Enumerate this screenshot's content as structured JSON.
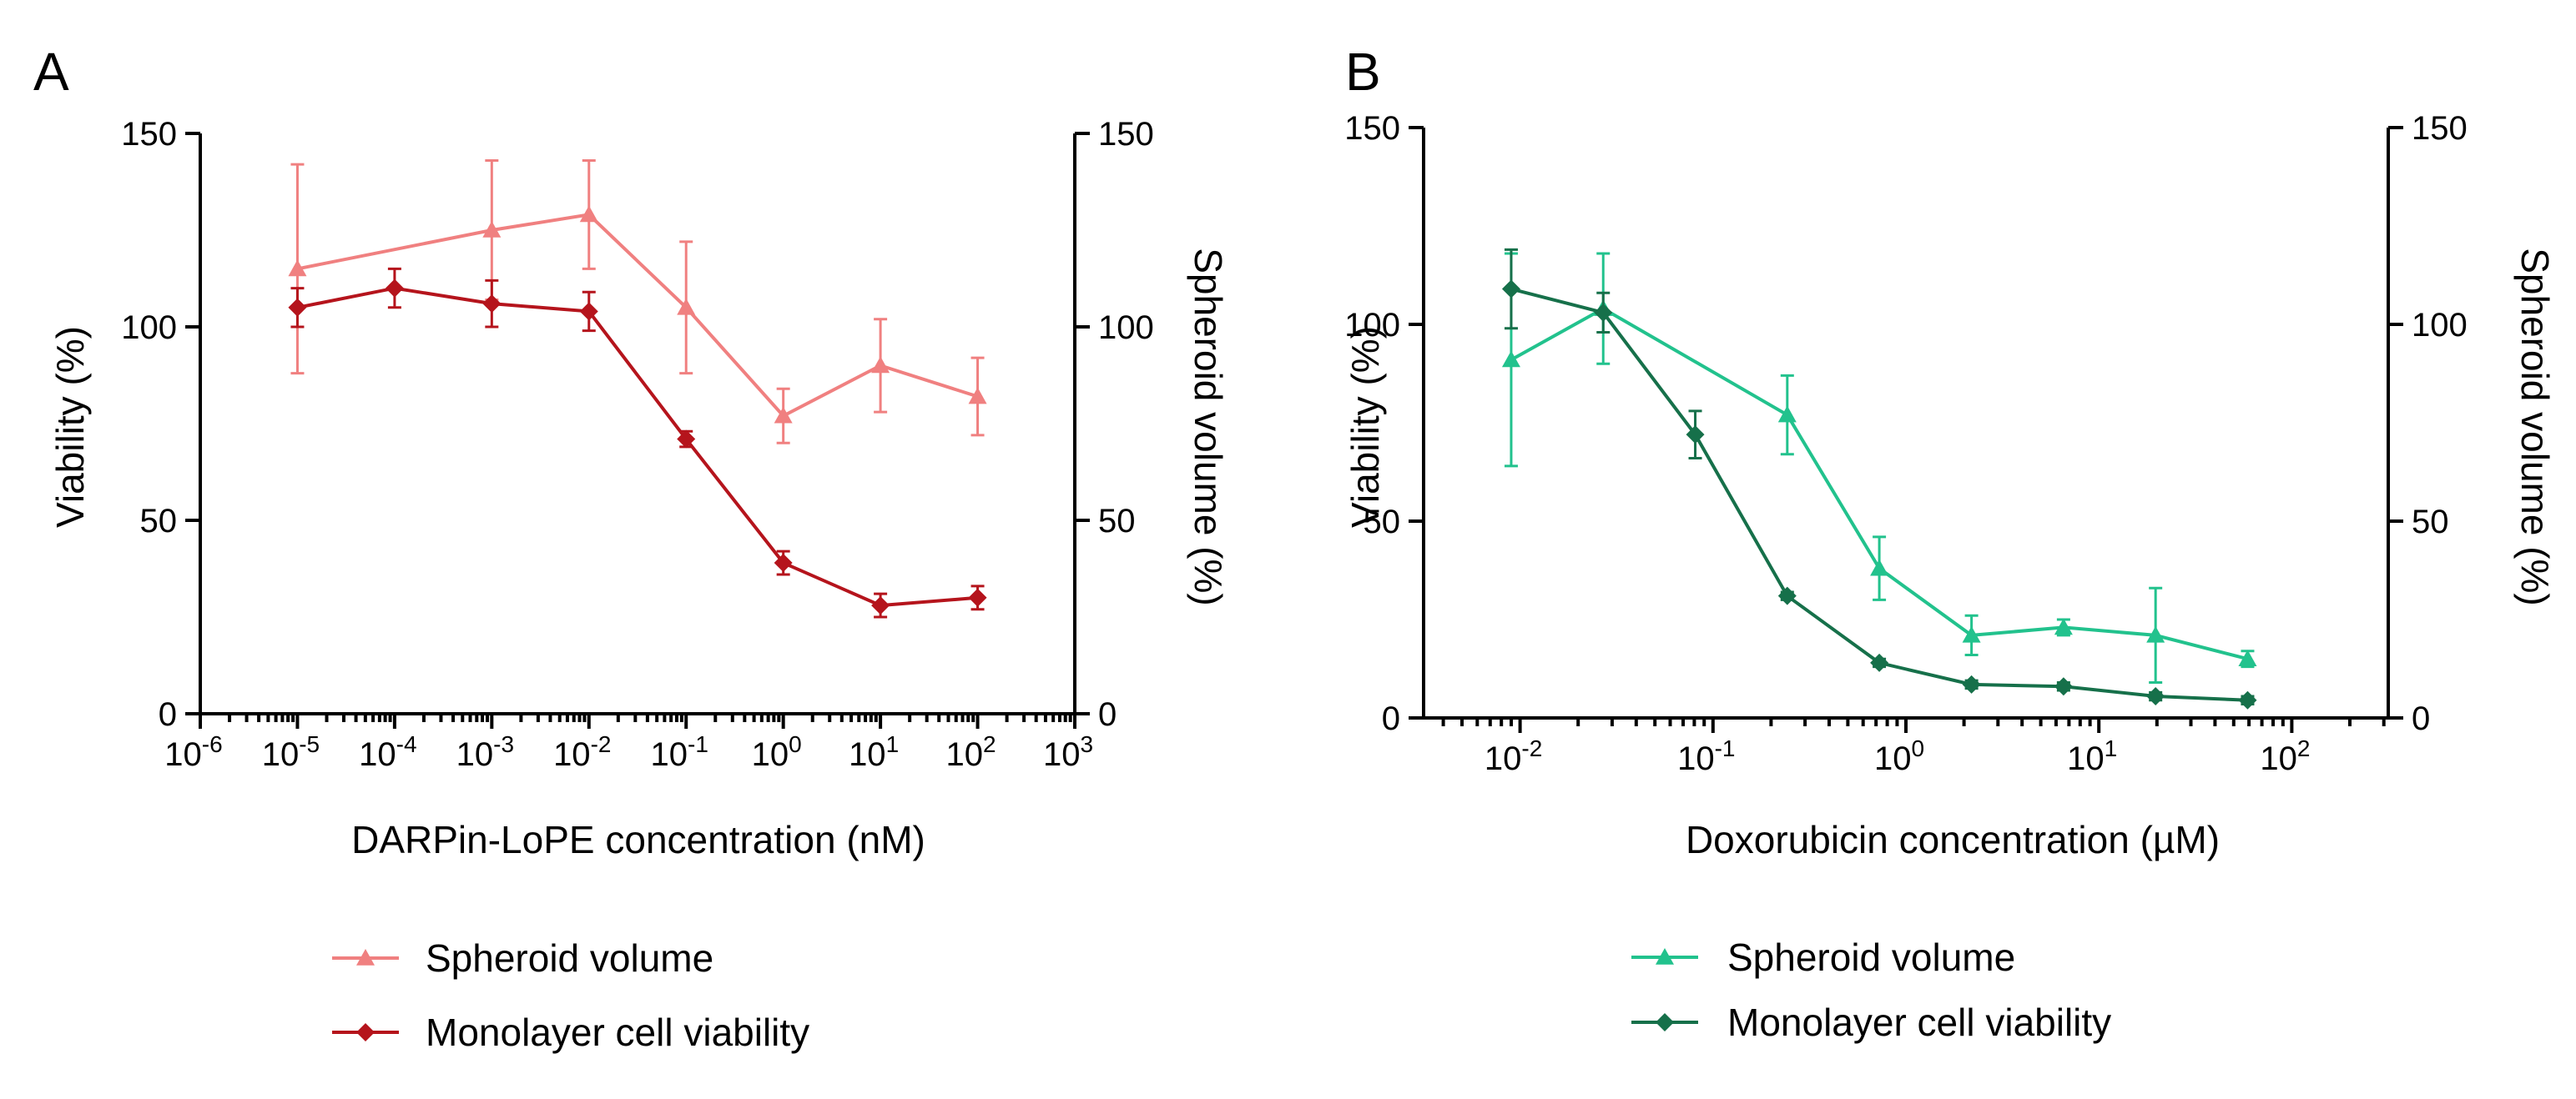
{
  "chart_data": [
    {
      "type": "line",
      "panel_label": "A",
      "xscale": "log",
      "xlabel": "DARPin-LoPE concentration (nM)",
      "ylabel": "Viability (%)",
      "y2label": "Spheroid volume (%)",
      "xlim_log10": [
        -6,
        3
      ],
      "x_tick_exponents": [
        "-6",
        "-5",
        "-4",
        "-3",
        "-2",
        "-1",
        "0",
        "1",
        "2",
        "3"
      ],
      "ylim": [
        0,
        150
      ],
      "y_ticks": [
        0,
        50,
        100,
        150
      ],
      "y2lim": [
        0,
        150
      ],
      "y2_ticks": [
        0,
        50,
        100,
        150
      ],
      "legend_position": "bottom",
      "series": [
        {
          "name": "Spheroid volume",
          "color": "#f08080",
          "marker": "triangle",
          "axis": "right",
          "x_log10": [
            -5,
            -3,
            -2,
            -1,
            0,
            1,
            2
          ],
          "values": [
            115,
            125,
            129,
            105,
            77,
            90,
            82
          ],
          "errors": [
            27,
            18,
            14,
            17,
            7,
            12,
            10
          ]
        },
        {
          "name": "Monolayer cell viability",
          "color": "#b5141c",
          "marker": "diamond",
          "axis": "left",
          "x_log10": [
            -5,
            -4,
            -3,
            -2,
            -1,
            0,
            1,
            2
          ],
          "values": [
            105,
            110,
            106,
            104,
            71,
            39,
            28,
            30
          ],
          "errors": [
            5,
            5,
            6,
            5,
            2,
            3,
            3,
            3
          ]
        }
      ]
    },
    {
      "type": "line",
      "panel_label": "B",
      "xscale": "log",
      "xlabel": "Doxorubicin concentration (µM)",
      "ylabel": "Viability (%)",
      "y2label": "Spheroid volume (%)",
      "xlim_log10": [
        -2.5,
        2.5
      ],
      "x_tick_exponents": [
        "-2",
        "-1",
        "0",
        "1",
        "2"
      ],
      "ylim": [
        0,
        150
      ],
      "y_ticks": [
        0,
        50,
        100,
        150
      ],
      "y2lim": [
        0,
        150
      ],
      "y2_ticks": [
        0,
        50,
        100,
        150
      ],
      "legend_position": "bottom",
      "series": [
        {
          "name": "Spheroid volume",
          "color": "#22c28d",
          "marker": "triangle",
          "axis": "right",
          "x_log10": [
            -2.046,
            -1.569,
            -0.615,
            -0.138,
            0.34,
            0.817,
            1.294,
            1.771
          ],
          "values": [
            91,
            104,
            77,
            38,
            21,
            23,
            21,
            15
          ],
          "errors": [
            27,
            14,
            10,
            8,
            5,
            2,
            12,
            2
          ]
        },
        {
          "name": "Monolayer cell viability",
          "color": "#16704a",
          "marker": "diamond",
          "axis": "left",
          "x_log10": [
            -2.046,
            -1.569,
            -1.092,
            -0.615,
            -0.138,
            0.34,
            0.817,
            1.294,
            1.771
          ],
          "values": [
            109,
            103,
            72,
            31,
            14,
            8.5,
            8,
            5.5,
            4.5
          ],
          "errors": [
            10,
            5,
            6,
            1,
            1,
            1,
            1,
            1,
            1
          ]
        }
      ]
    }
  ]
}
